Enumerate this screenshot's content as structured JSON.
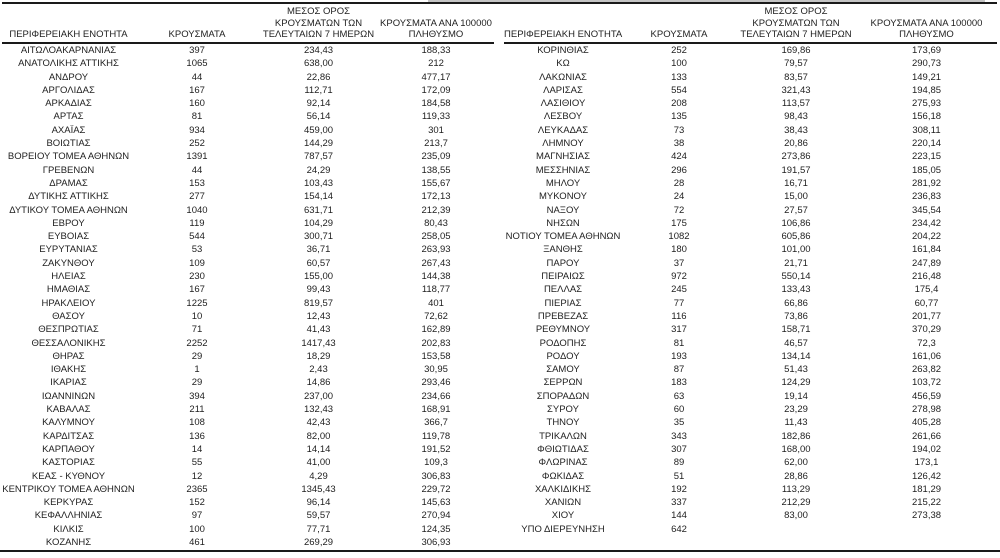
{
  "columns": {
    "region": "ΠΕΡΙΦΕΡΕΙΑΚΗ ΕΝΟΤΗΤΑ",
    "cases": "ΚΡΟΥΣΜΑΤΑ",
    "avg7_lines": [
      "ΜΕΣΟΣ ΟΡΟΣ",
      "ΚΡΟΥΣΜΑΤΩΝ ΤΩΝ",
      "ΤΕΛΕΥΤΑΙΩΝ 7 ΗΜΕΡΩΝ"
    ],
    "per100k_lines": [
      "ΚΡΟΥΣΜΑΤΑ ΑΝΑ 100000",
      "ΠΛΗΘΥΣΜΟ"
    ]
  },
  "colors": {
    "text": "#1e1e1e",
    "rule": "#1a1a1a",
    "top_strip": "#c4c4c4",
    "background": "#ffffff"
  },
  "left_table": {
    "rows": [
      {
        "region": "ΑΙΤΩΛΟΑΚΑΡΝΑΝΙΑΣ",
        "cases": "397",
        "avg7": "234,43",
        "per100k": "188,33"
      },
      {
        "region": "ΑΝΑΤΟΛΙΚΗΣ ΑΤΤΙΚΗΣ",
        "cases": "1065",
        "avg7": "638,00",
        "per100k": "212"
      },
      {
        "region": "ΑΝΔΡΟΥ",
        "cases": "44",
        "avg7": "22,86",
        "per100k": "477,17"
      },
      {
        "region": "ΑΡΓΟΛΙΔΑΣ",
        "cases": "167",
        "avg7": "112,71",
        "per100k": "172,09"
      },
      {
        "region": "ΑΡΚΑΔΙΑΣ",
        "cases": "160",
        "avg7": "92,14",
        "per100k": "184,58"
      },
      {
        "region": "ΑΡΤΑΣ",
        "cases": "81",
        "avg7": "56,14",
        "per100k": "119,33"
      },
      {
        "region": "ΑΧΑΪΑΣ",
        "cases": "934",
        "avg7": "459,00",
        "per100k": "301"
      },
      {
        "region": "ΒΟΙΩΤΙΑΣ",
        "cases": "252",
        "avg7": "144,29",
        "per100k": "213,7"
      },
      {
        "region": "ΒΟΡΕΙΟΥ ΤΟΜΕΑ ΑΘΗΝΩΝ",
        "cases": "1391",
        "avg7": "787,57",
        "per100k": "235,09"
      },
      {
        "region": "ΓΡΕΒΕΝΩΝ",
        "cases": "44",
        "avg7": "24,29",
        "per100k": "138,55"
      },
      {
        "region": "ΔΡΑΜΑΣ",
        "cases": "153",
        "avg7": "103,43",
        "per100k": "155,67"
      },
      {
        "region": "ΔΥΤΙΚΗΣ ΑΤΤΙΚΗΣ",
        "cases": "277",
        "avg7": "154,14",
        "per100k": "172,13"
      },
      {
        "region": "ΔΥΤΙΚΟΥ ΤΟΜΕΑ ΑΘΗΝΩΝ",
        "cases": "1040",
        "avg7": "631,71",
        "per100k": "212,39"
      },
      {
        "region": "ΕΒΡΟΥ",
        "cases": "119",
        "avg7": "104,29",
        "per100k": "80,43"
      },
      {
        "region": "ΕΥΒΟΙΑΣ",
        "cases": "544",
        "avg7": "300,71",
        "per100k": "258,05"
      },
      {
        "region": "ΕΥΡΥΤΑΝΙΑΣ",
        "cases": "53",
        "avg7": "36,71",
        "per100k": "263,93"
      },
      {
        "region": "ΖΑΚΥΝΘΟΥ",
        "cases": "109",
        "avg7": "60,57",
        "per100k": "267,43"
      },
      {
        "region": "ΗΛΕΙΑΣ",
        "cases": "230",
        "avg7": "155,00",
        "per100k": "144,38"
      },
      {
        "region": "ΗΜΑΘΙΑΣ",
        "cases": "167",
        "avg7": "99,43",
        "per100k": "118,77"
      },
      {
        "region": "ΗΡΑΚΛΕΙΟΥ",
        "cases": "1225",
        "avg7": "819,57",
        "per100k": "401"
      },
      {
        "region": "ΘΑΣΟΥ",
        "cases": "10",
        "avg7": "12,43",
        "per100k": "72,62"
      },
      {
        "region": "ΘΕΣΠΡΩΤΙΑΣ",
        "cases": "71",
        "avg7": "41,43",
        "per100k": "162,89"
      },
      {
        "region": "ΘΕΣΣΑΛΟΝΙΚΗΣ",
        "cases": "2252",
        "avg7": "1417,43",
        "per100k": "202,83"
      },
      {
        "region": "ΘΗΡΑΣ",
        "cases": "29",
        "avg7": "18,29",
        "per100k": "153,58"
      },
      {
        "region": "ΙΘΑΚΗΣ",
        "cases": "1",
        "avg7": "2,43",
        "per100k": "30,95"
      },
      {
        "region": "ΙΚΑΡΙΑΣ",
        "cases": "29",
        "avg7": "14,86",
        "per100k": "293,46"
      },
      {
        "region": "ΙΩΑΝΝΙΝΩΝ",
        "cases": "394",
        "avg7": "237,00",
        "per100k": "234,66"
      },
      {
        "region": "ΚΑΒΑΛΑΣ",
        "cases": "211",
        "avg7": "132,43",
        "per100k": "168,91"
      },
      {
        "region": "ΚΑΛΥΜΝΟΥ",
        "cases": "108",
        "avg7": "42,43",
        "per100k": "366,7"
      },
      {
        "region": "ΚΑΡΔΙΤΣΑΣ",
        "cases": "136",
        "avg7": "82,00",
        "per100k": "119,78"
      },
      {
        "region": "ΚΑΡΠΑΘΟΥ",
        "cases": "14",
        "avg7": "14,14",
        "per100k": "191,52"
      },
      {
        "region": "ΚΑΣΤΟΡΙΑΣ",
        "cases": "55",
        "avg7": "41,00",
        "per100k": "109,3"
      },
      {
        "region": "ΚΕΑΣ - ΚΥΘΝΟΥ",
        "cases": "12",
        "avg7": "4,29",
        "per100k": "306,83"
      },
      {
        "region": "ΚΕΝΤΡΙΚΟΥ ΤΟΜΕΑ ΑΘΗΝΩΝ",
        "cases": "2365",
        "avg7": "1345,43",
        "per100k": "229,72"
      },
      {
        "region": "ΚΕΡΚΥΡΑΣ",
        "cases": "152",
        "avg7": "96,14",
        "per100k": "145,63"
      },
      {
        "region": "ΚΕΦΑΛΛΗΝΙΑΣ",
        "cases": "97",
        "avg7": "59,57",
        "per100k": "270,94"
      },
      {
        "region": "ΚΙΛΚΙΣ",
        "cases": "100",
        "avg7": "77,71",
        "per100k": "124,35"
      },
      {
        "region": "ΚΟΖΑΝΗΣ",
        "cases": "461",
        "avg7": "269,29",
        "per100k": "306,93"
      }
    ]
  },
  "right_table": {
    "rows": [
      {
        "region": "ΚΟΡΙΝΘΙΑΣ",
        "cases": "252",
        "avg7": "169,86",
        "per100k": "173,69"
      },
      {
        "region": "ΚΩ",
        "cases": "100",
        "avg7": "79,57",
        "per100k": "290,73"
      },
      {
        "region": "ΛΑΚΩΝΙΑΣ",
        "cases": "133",
        "avg7": "83,57",
        "per100k": "149,21"
      },
      {
        "region": "ΛΑΡΙΣΑΣ",
        "cases": "554",
        "avg7": "321,43",
        "per100k": "194,85"
      },
      {
        "region": "ΛΑΣΙΘΙΟΥ",
        "cases": "208",
        "avg7": "113,57",
        "per100k": "275,93"
      },
      {
        "region": "ΛΕΣΒΟΥ",
        "cases": "135",
        "avg7": "98,43",
        "per100k": "156,18"
      },
      {
        "region": "ΛΕΥΚΑΔΑΣ",
        "cases": "73",
        "avg7": "38,43",
        "per100k": "308,11"
      },
      {
        "region": "ΛΗΜΝΟΥ",
        "cases": "38",
        "avg7": "20,86",
        "per100k": "220,14"
      },
      {
        "region": "ΜΑΓΝΗΣΙΑΣ",
        "cases": "424",
        "avg7": "273,86",
        "per100k": "223,15"
      },
      {
        "region": "ΜΕΣΣΗΝΙΑΣ",
        "cases": "296",
        "avg7": "191,57",
        "per100k": "185,05"
      },
      {
        "region": "ΜΗΛΟΥ",
        "cases": "28",
        "avg7": "16,71",
        "per100k": "281,92"
      },
      {
        "region": "ΜΥΚΟΝΟΥ",
        "cases": "24",
        "avg7": "15,00",
        "per100k": "236,83"
      },
      {
        "region": "ΝΑΞΟΥ",
        "cases": "72",
        "avg7": "27,57",
        "per100k": "345,54"
      },
      {
        "region": "ΝΗΣΩΝ",
        "cases": "175",
        "avg7": "106,86",
        "per100k": "234,42"
      },
      {
        "region": "ΝΟΤΙΟΥ ΤΟΜΕΑ ΑΘΗΝΩΝ",
        "cases": "1082",
        "avg7": "605,86",
        "per100k": "204,22"
      },
      {
        "region": "ΞΑΝΘΗΣ",
        "cases": "180",
        "avg7": "101,00",
        "per100k": "161,84"
      },
      {
        "region": "ΠΑΡΟΥ",
        "cases": "37",
        "avg7": "21,71",
        "per100k": "247,89"
      },
      {
        "region": "ΠΕΙΡΑΙΩΣ",
        "cases": "972",
        "avg7": "550,14",
        "per100k": "216,48"
      },
      {
        "region": "ΠΕΛΛΑΣ",
        "cases": "245",
        "avg7": "133,43",
        "per100k": "175,4"
      },
      {
        "region": "ΠΙΕΡΙΑΣ",
        "cases": "77",
        "avg7": "66,86",
        "per100k": "60,77"
      },
      {
        "region": "ΠΡΕΒΕΖΑΣ",
        "cases": "116",
        "avg7": "73,86",
        "per100k": "201,77"
      },
      {
        "region": "ΡΕΘΥΜΝΟΥ",
        "cases": "317",
        "avg7": "158,71",
        "per100k": "370,29"
      },
      {
        "region": "ΡΟΔΟΠΗΣ",
        "cases": "81",
        "avg7": "46,57",
        "per100k": "72,3"
      },
      {
        "region": "ΡΟΔΟΥ",
        "cases": "193",
        "avg7": "134,14",
        "per100k": "161,06"
      },
      {
        "region": "ΣΑΜΟΥ",
        "cases": "87",
        "avg7": "51,43",
        "per100k": "263,82"
      },
      {
        "region": "ΣΕΡΡΩΝ",
        "cases": "183",
        "avg7": "124,29",
        "per100k": "103,72"
      },
      {
        "region": "ΣΠΟΡΑΔΩΝ",
        "cases": "63",
        "avg7": "19,14",
        "per100k": "456,59"
      },
      {
        "region": "ΣΥΡΟΥ",
        "cases": "60",
        "avg7": "23,29",
        "per100k": "278,98"
      },
      {
        "region": "ΤΗΝΟΥ",
        "cases": "35",
        "avg7": "11,43",
        "per100k": "405,28"
      },
      {
        "region": "ΤΡΙΚΑΛΩΝ",
        "cases": "343",
        "avg7": "182,86",
        "per100k": "261,66"
      },
      {
        "region": "ΦΘΙΩΤΙΔΑΣ",
        "cases": "307",
        "avg7": "168,00",
        "per100k": "194,02"
      },
      {
        "region": "ΦΛΩΡΙΝΑΣ",
        "cases": "89",
        "avg7": "62,00",
        "per100k": "173,1"
      },
      {
        "region": "ΦΩΚΙΔΑΣ",
        "cases": "51",
        "avg7": "28,86",
        "per100k": "126,42"
      },
      {
        "region": "ΧΑΛΚΙΔΙΚΗΣ",
        "cases": "192",
        "avg7": "113,29",
        "per100k": "181,29"
      },
      {
        "region": "ΧΑΝΙΩΝ",
        "cases": "337",
        "avg7": "212,29",
        "per100k": "215,22"
      },
      {
        "region": "ΧΙΟΥ",
        "cases": "144",
        "avg7": "83,00",
        "per100k": "273,38"
      },
      {
        "region": "ΥΠΟ ΔΙΕΡΕΥΝΗΣΗ",
        "cases": "642",
        "avg7": "",
        "per100k": ""
      }
    ]
  }
}
